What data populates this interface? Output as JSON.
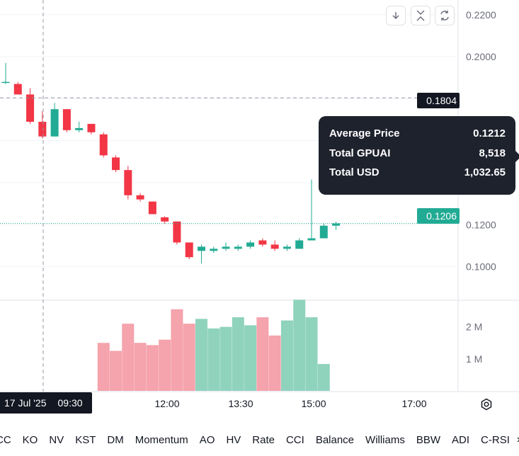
{
  "toolbar": {
    "download_icon": "↓",
    "collapse_icon": "collapse-arrows-icon",
    "refresh_icon": "refresh-icon"
  },
  "price_axis_labels": [
    "0.2200",
    "0.2000",
    "0.1200",
    "0.1000"
  ],
  "volume_axis_labels": [
    "2 M",
    "1 M"
  ],
  "time_axis_labels": [
    "13:30",
    "12:00",
    "13:30",
    "15:00",
    "17:00"
  ],
  "crosshair": {
    "date": "17 Jul '25",
    "time": "09:30",
    "price": "0.1804"
  },
  "last_price": "0.1206",
  "colors": {
    "up": "#22ab94",
    "down": "#f23645",
    "up_volume": "#8fd3bd",
    "down_volume": "#f5a3ac",
    "last_price_tag": "#22ab94",
    "crosshair_tag": "#131722"
  },
  "tooltip": {
    "rows": [
      {
        "label": "Average Price",
        "value": "0.1212"
      },
      {
        "label": "Total GPUAI",
        "value": "8,518"
      },
      {
        "label": "Total USD",
        "value": "1,032.65"
      }
    ]
  },
  "indicators": [
    "CC",
    "KO",
    "NV",
    "KST",
    "DM",
    "Momentum",
    "AO",
    "HV",
    "Rate",
    "CCI",
    "Balance",
    "Williams",
    "BBW",
    "ADI",
    "C-RSI"
  ],
  "chart_data": {
    "type": "candlestick",
    "price_range": [
      0.084,
      0.227
    ],
    "volume_range": [
      0,
      2700000
    ],
    "candles": [
      {
        "o": 0.188,
        "h": 0.197,
        "l": 0.187,
        "c": 0.188,
        "v": 0
      },
      {
        "o": 0.187,
        "h": 0.188,
        "l": 0.182,
        "c": 0.182,
        "v": 0
      },
      {
        "o": 0.182,
        "h": 0.185,
        "l": 0.168,
        "c": 0.169,
        "v": 0
      },
      {
        "o": 0.169,
        "h": 0.174,
        "l": 0.161,
        "c": 0.162,
        "v": 0
      },
      {
        "o": 0.162,
        "h": 0.178,
        "l": 0.162,
        "c": 0.175,
        "v": 0
      },
      {
        "o": 0.175,
        "h": 0.175,
        "l": 0.164,
        "c": 0.165,
        "v": 0
      },
      {
        "o": 0.165,
        "h": 0.169,
        "l": 0.164,
        "c": 0.166,
        "v": 0
      },
      {
        "o": 0.168,
        "h": 0.168,
        "l": 0.163,
        "c": 0.164,
        "v": 0
      },
      {
        "o": 0.163,
        "h": 0.164,
        "l": 0.152,
        "c": 0.153,
        "v": 1500000
      },
      {
        "o": 0.152,
        "h": 0.153,
        "l": 0.145,
        "c": 0.146,
        "v": 1250000
      },
      {
        "o": 0.146,
        "h": 0.148,
        "l": 0.132,
        "c": 0.134,
        "v": 2100000
      },
      {
        "o": 0.134,
        "h": 0.135,
        "l": 0.131,
        "c": 0.132,
        "v": 1500000
      },
      {
        "o": 0.131,
        "h": 0.131,
        "l": 0.125,
        "c": 0.125,
        "v": 1430000
      },
      {
        "o": 0.1235,
        "h": 0.124,
        "l": 0.1205,
        "c": 0.1215,
        "v": 1600000
      },
      {
        "o": 0.1215,
        "h": 0.1215,
        "l": 0.1105,
        "c": 0.1115,
        "v": 2550000
      },
      {
        "o": 0.1115,
        "h": 0.1115,
        "l": 0.1035,
        "c": 0.1045,
        "v": 2100000
      },
      {
        "o": 0.1075,
        "h": 0.1105,
        "l": 0.1015,
        "c": 0.1095,
        "v": 2250000
      },
      {
        "o": 0.1075,
        "h": 0.1095,
        "l": 0.1065,
        "c": 0.1085,
        "v": 1950000
      },
      {
        "o": 0.1085,
        "h": 0.1115,
        "l": 0.1075,
        "c": 0.1095,
        "v": 2000000
      },
      {
        "o": 0.1085,
        "h": 0.1105,
        "l": 0.1075,
        "c": 0.1095,
        "v": 2300000
      },
      {
        "o": 0.1095,
        "h": 0.1125,
        "l": 0.1085,
        "c": 0.1115,
        "v": 2050000
      },
      {
        "o": 0.1125,
        "h": 0.1135,
        "l": 0.1095,
        "c": 0.1105,
        "v": 2300000
      },
      {
        "o": 0.1105,
        "h": 0.1125,
        "l": 0.1075,
        "c": 0.1085,
        "v": 1730000
      },
      {
        "o": 0.1085,
        "h": 0.1105,
        "l": 0.1075,
        "c": 0.1095,
        "v": 2200000
      },
      {
        "o": 0.1085,
        "h": 0.1135,
        "l": 0.1085,
        "c": 0.1125,
        "v": 2850000
      },
      {
        "o": 0.1125,
        "h": 0.1415,
        "l": 0.1125,
        "c": 0.1135,
        "v": 2300000
      },
      {
        "o": 0.1135,
        "h": 0.1205,
        "l": 0.1135,
        "c": 0.1195,
        "v": 840000
      },
      {
        "o": 0.1195,
        "h": 0.1215,
        "l": 0.1175,
        "c": 0.1206,
        "v": 0
      }
    ]
  }
}
